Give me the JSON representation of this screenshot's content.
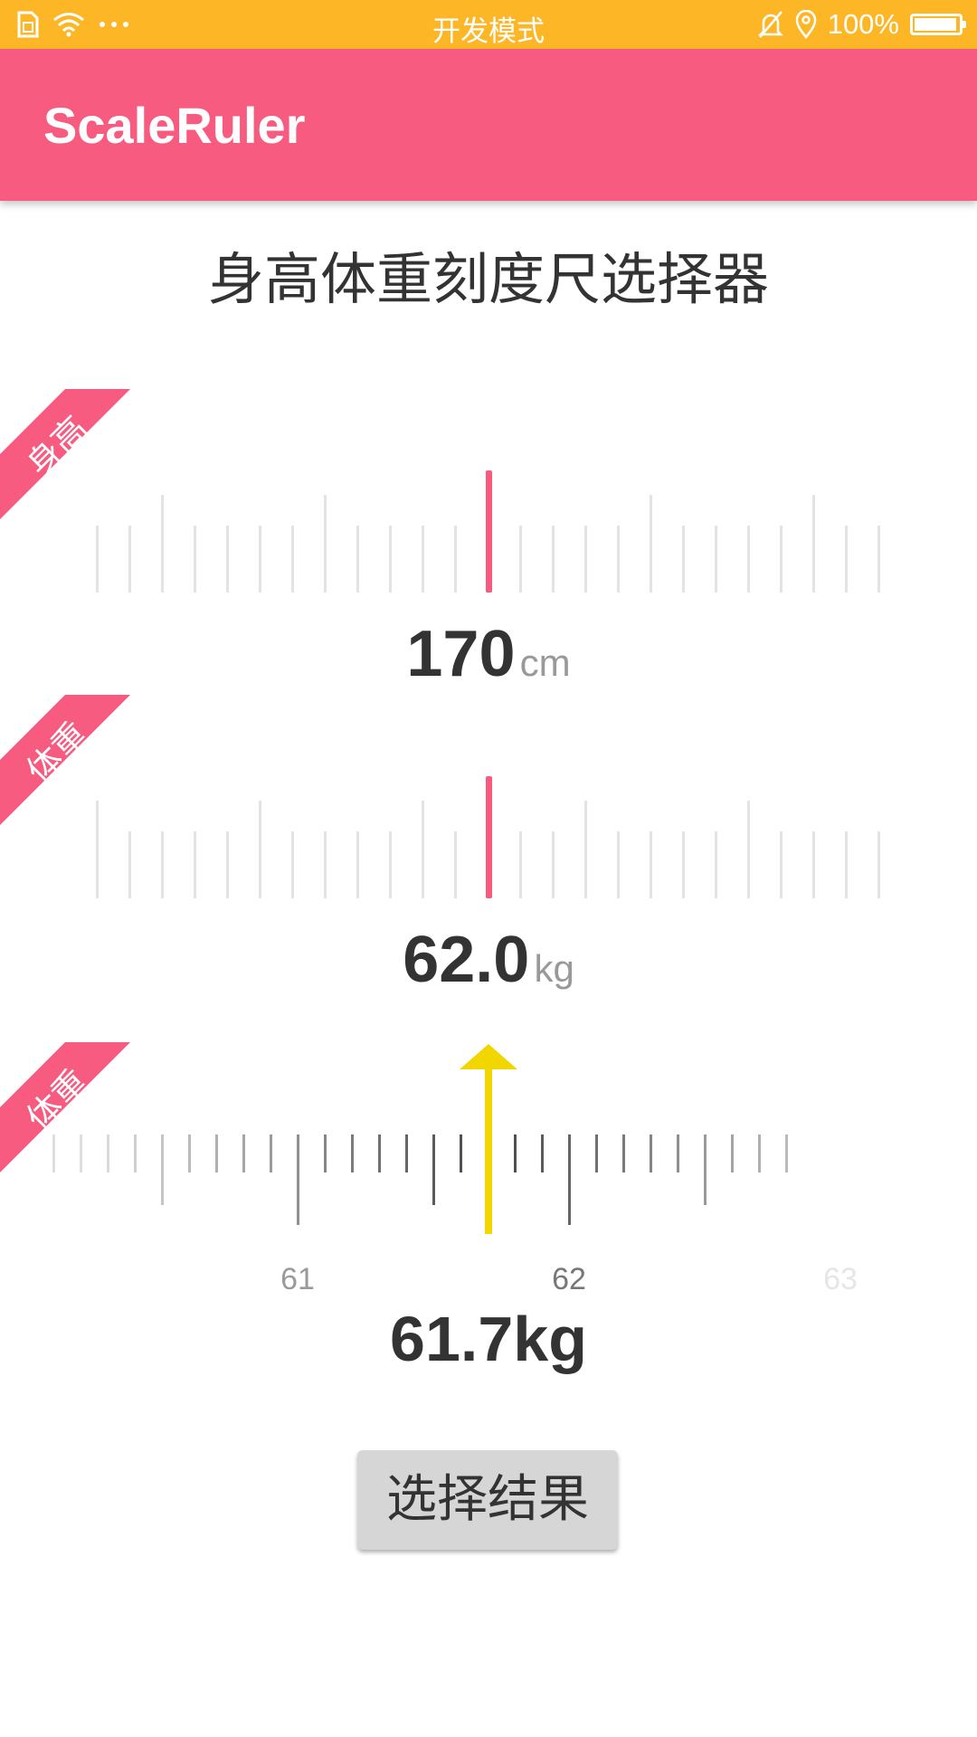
{
  "status_bar": {
    "center_text": "开发模式",
    "battery_text": "100%",
    "battery_level": 1.0,
    "icons": [
      "sim-icon",
      "wifi-icon",
      "more-dots-icon",
      "bell-muted-icon",
      "location-icon",
      "battery-icon"
    ]
  },
  "app_bar": {
    "title": "ScaleRuler",
    "color": "#F75B7F"
  },
  "status_bar_color": "#FDB726",
  "page_title": "身高体重刻度尺选择器",
  "height_picker": {
    "ribbon_label": "身高",
    "value": "170",
    "unit": "cm"
  },
  "weight_picker": {
    "ribbon_label": "体重",
    "value": "62.0",
    "unit": "kg"
  },
  "weight_picker_2": {
    "ribbon_label": "体重",
    "tick_labels": [
      "61",
      "62",
      "63"
    ],
    "value_text": "61.7kg",
    "pointer_color": "#F2D600",
    "selected_value": 61.7
  },
  "result_button": {
    "label": "选择结果"
  }
}
